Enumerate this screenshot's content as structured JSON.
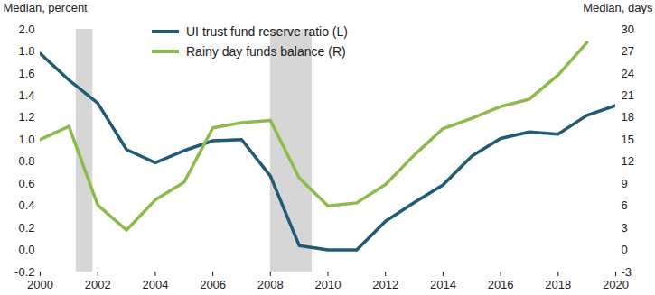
{
  "chart_data": {
    "type": "line",
    "x": [
      2000,
      2001,
      2002,
      2003,
      2004,
      2005,
      2006,
      2007,
      2008,
      2009,
      2010,
      2011,
      2012,
      2013,
      2014,
      2015,
      2016,
      2017,
      2018,
      2019,
      2020
    ],
    "series": [
      {
        "name": "UI trust fund reserve ratio (L)",
        "color": "#1f5b74",
        "axis": "y",
        "values": [
          1.78,
          1.54,
          1.33,
          0.91,
          0.79,
          0.9,
          0.99,
          1.0,
          0.67,
          0.04,
          0.0,
          0.0,
          0.26,
          0.43,
          0.59,
          0.85,
          1.01,
          1.07,
          1.05,
          1.22,
          1.31
        ]
      },
      {
        "name": "Rainy day funds balance (R)",
        "color": "#8cbb4b",
        "axis": "y2",
        "values": [
          15.0,
          16.8,
          6.1,
          2.7,
          6.8,
          9.2,
          16.6,
          17.3,
          17.6,
          9.8,
          6.0,
          6.4,
          8.9,
          12.9,
          16.5,
          17.9,
          19.5,
          20.5,
          23.8,
          28.2,
          null
        ]
      }
    ],
    "ylabel": "Median, percent",
    "y2label": "Median, days",
    "xlim": [
      2000,
      2020
    ],
    "xticks": [
      2000,
      2002,
      2004,
      2006,
      2008,
      2010,
      2012,
      2014,
      2016,
      2018,
      2020
    ],
    "ylim": [
      -0.2,
      2.0
    ],
    "yticks": [
      -0.2,
      {
        "value": 0,
        "label": "0.0"
      },
      0.2,
      0.4,
      0.6,
      0.8,
      {
        "value": 1,
        "label": "1.0"
      },
      1.2,
      1.4,
      1.6,
      1.8,
      {
        "value": 2,
        "label": "2.0"
      }
    ],
    "y2lim": [
      -3,
      30
    ],
    "y2ticks": [
      -3,
      0,
      3,
      6,
      9,
      12,
      15,
      18,
      21,
      24,
      27,
      30
    ],
    "grid": false,
    "legend": "top",
    "recessions": [
      {
        "start": 2001.25,
        "end": 2001.83
      },
      {
        "start": 2008.0,
        "end": 2009.45
      }
    ]
  }
}
